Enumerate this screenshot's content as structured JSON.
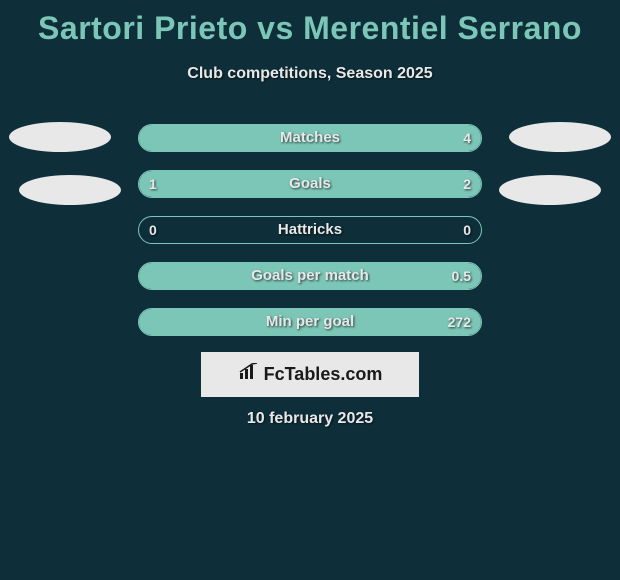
{
  "title": "Sartori Prieto vs Merentiel Serrano",
  "subtitle": "Club competitions, Season 2025",
  "date": "10 february 2025",
  "brand": "FcTables.com",
  "colors": {
    "background": "#0e2f3a",
    "accent": "#7cc6b8",
    "text": "#e8e8e8",
    "avatar": "#e8e8e8",
    "brand_bg": "#e8e8e8",
    "brand_text": "#1a1a1a"
  },
  "rows": [
    {
      "label": "Matches",
      "left": "",
      "right": "4",
      "fill_left_pct": 0,
      "fill_right_pct": 100
    },
    {
      "label": "Goals",
      "left": "1",
      "right": "2",
      "fill_left_pct": 33,
      "fill_right_pct": 67
    },
    {
      "label": "Hattricks",
      "left": "0",
      "right": "0",
      "fill_left_pct": 0,
      "fill_right_pct": 0
    },
    {
      "label": "Goals per match",
      "left": "",
      "right": "0.5",
      "fill_left_pct": 0,
      "fill_right_pct": 100
    },
    {
      "label": "Min per goal",
      "left": "",
      "right": "272",
      "fill_left_pct": 0,
      "fill_right_pct": 100
    }
  ]
}
